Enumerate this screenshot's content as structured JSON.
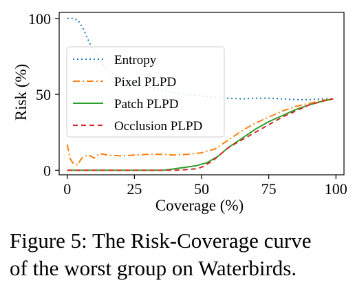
{
  "caption": {
    "line1": "Figure 5: The Risk-Coverage curve",
    "line2": "of the worst group on Waterbirds."
  },
  "chart_data": {
    "type": "line",
    "xlabel": "Coverage (%)",
    "ylabel": "Risk (%)",
    "xlim": [
      -3,
      103
    ],
    "ylim": [
      -3,
      104
    ],
    "xticks": [
      0,
      25,
      50,
      75,
      100
    ],
    "yticks": [
      0,
      50,
      100
    ],
    "grid": false,
    "legend_position": "center-left",
    "series": [
      {
        "name": "Entropy",
        "color": "#1f77b4",
        "style": "dotted",
        "x": [
          0,
          2,
          4,
          6,
          8,
          10,
          14,
          18,
          22,
          26,
          30,
          35,
          40,
          45,
          50,
          55,
          60,
          65,
          70,
          75,
          80,
          85,
          90,
          95,
          99
        ],
        "y": [
          100,
          100,
          99,
          93,
          85,
          78,
          68,
          62,
          58,
          56,
          55,
          53,
          51,
          50,
          49,
          48,
          47.5,
          47,
          47.5,
          47.5,
          47,
          46.5,
          46.5,
          47,
          47
        ]
      },
      {
        "name": "Pixel PLPD",
        "color": "#ff7f0e",
        "style": "dashdot",
        "x": [
          0,
          1,
          2,
          3,
          4,
          5,
          6,
          8,
          10,
          12,
          15,
          20,
          25,
          30,
          35,
          40,
          45,
          50,
          55,
          60,
          65,
          70,
          75,
          80,
          85,
          90,
          95,
          99
        ],
        "y": [
          17,
          8,
          5,
          4,
          3.5,
          7,
          9,
          10,
          8,
          11,
          10,
          9.5,
          10,
          10.5,
          10.5,
          10,
          10.5,
          11.5,
          14,
          20,
          26,
          31,
          35,
          39,
          42,
          44,
          46,
          47
        ]
      },
      {
        "name": "Patch PLPD",
        "color": "#2ca02c",
        "style": "solid",
        "x": [
          0,
          10,
          20,
          30,
          36,
          38,
          40,
          42,
          44,
          46,
          48,
          50,
          52,
          54,
          56,
          58,
          60,
          65,
          70,
          75,
          80,
          85,
          90,
          95,
          99
        ],
        "y": [
          0,
          0,
          0,
          0,
          0,
          0.5,
          1,
          1.5,
          2,
          2.5,
          3,
          4,
          5,
          7,
          9,
          12,
          15,
          21,
          27,
          32,
          36,
          40,
          43,
          45.5,
          47
        ]
      },
      {
        "name": "Occlusion PLPD",
        "color": "#d62728",
        "style": "dashed",
        "x": [
          0,
          10,
          20,
          30,
          40,
          45,
          48,
          50,
          52,
          54,
          56,
          58,
          60,
          65,
          70,
          75,
          80,
          85,
          90,
          95,
          99
        ],
        "y": [
          0,
          0,
          0,
          0,
          0,
          0.5,
          1,
          2,
          4,
          6,
          9,
          12,
          15,
          20,
          25,
          30,
          35,
          39,
          43,
          45.5,
          47
        ]
      }
    ]
  }
}
